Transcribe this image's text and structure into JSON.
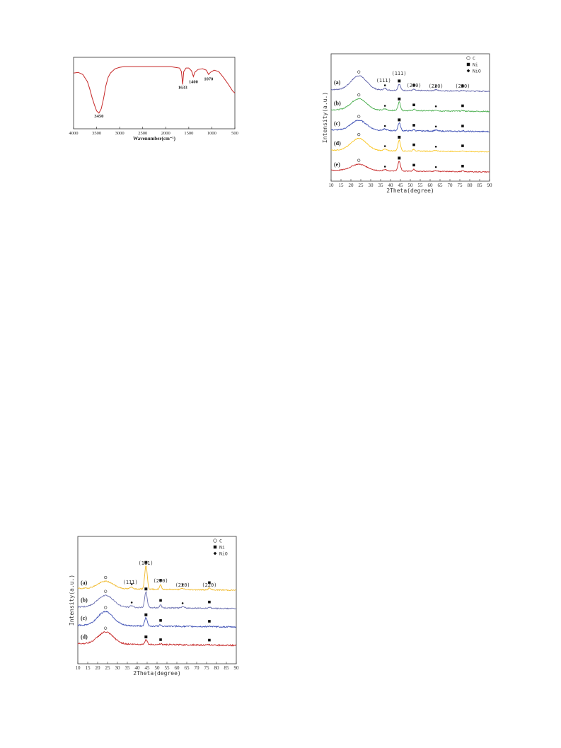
{
  "chart_data": [
    {
      "type": "line",
      "xlabel": "Wavenumber(cm⁻¹)",
      "ylabel": "",
      "xlim": [
        4000,
        500
      ],
      "x_reversed": true,
      "xticks": [
        "4000",
        "3500",
        "3000",
        "2500",
        "2000",
        "1500",
        "1000",
        "500"
      ],
      "grid": false,
      "line_color": "#c62828",
      "series": [
        {
          "x": [
            4000,
            3900,
            3800,
            3700,
            3650,
            3600,
            3550,
            3500,
            3450,
            3400,
            3350,
            3300,
            3250,
            3200,
            3100,
            3000,
            2900,
            2800,
            2600,
            2400,
            2200,
            2000,
            1900,
            1800,
            1700,
            1660,
            1633,
            1610,
            1560,
            1500,
            1440,
            1400,
            1370,
            1300,
            1200,
            1120,
            1070,
            1030,
            950,
            850,
            750,
            650,
            550,
            500
          ],
          "y": [
            0.78,
            0.79,
            0.76,
            0.66,
            0.56,
            0.44,
            0.34,
            0.25,
            0.22,
            0.28,
            0.42,
            0.6,
            0.72,
            0.78,
            0.84,
            0.86,
            0.87,
            0.87,
            0.87,
            0.87,
            0.87,
            0.87,
            0.87,
            0.86,
            0.85,
            0.8,
            0.62,
            0.8,
            0.85,
            0.85,
            0.81,
            0.73,
            0.79,
            0.83,
            0.84,
            0.82,
            0.76,
            0.79,
            0.82,
            0.8,
            0.72,
            0.63,
            0.53,
            0.5
          ]
        }
      ],
      "annotations": [
        {
          "text": "3450",
          "x": 3450,
          "y": 0.16
        },
        {
          "text": "1633",
          "x": 1633,
          "y": 0.56
        },
        {
          "text": "1400",
          "x": 1400,
          "y": 0.64
        },
        {
          "text": "1070",
          "x": 1070,
          "y": 0.68
        }
      ]
    },
    {
      "type": "line",
      "xlabel": "2Theta(degree)",
      "ylabel": "Intensity(a.u.)",
      "xlim": [
        10,
        90
      ],
      "xticks": [
        "10",
        "15",
        "20",
        "25",
        "30",
        "35",
        "40",
        "45",
        "50",
        "55",
        "60",
        "65",
        "70",
        "75",
        "80",
        "85",
        "90"
      ],
      "grid": false,
      "legend": {
        "position": "top-right",
        "entries": [
          {
            "marker": "circle-open",
            "label": "C"
          },
          {
            "marker": "square",
            "label": "Ni"
          },
          {
            "marker": "diamond",
            "label": "NiO"
          }
        ]
      },
      "miller_labels": [
        {
          "text": "(111)",
          "x": 36.5
        },
        {
          "text": "(111)",
          "x": 44.3
        },
        {
          "text": "(200)",
          "x": 51.8
        },
        {
          "text": "(220)",
          "x": 62.9
        },
        {
          "text": "(220)",
          "x": 76.4
        }
      ],
      "series": [
        {
          "name": "(a)",
          "color": "#5c5fa8",
          "c": 1.0,
          "ni": 0.45,
          "nio": 0.12,
          "noise": 0.035
        },
        {
          "name": "(b)",
          "color": "#4caf50",
          "c": 0.8,
          "ni": 0.6,
          "nio": 0.1,
          "noise": 0.035
        },
        {
          "name": "(c)",
          "color": "#3f51b5",
          "c": 0.7,
          "ni": 0.55,
          "nio": 0.1,
          "noise": 0.04
        },
        {
          "name": "(d)",
          "color": "#f9c623",
          "c": 0.85,
          "ni": 0.75,
          "nio": 0.1,
          "noise": 0.03
        },
        {
          "name": "(e)",
          "color": "#c62828",
          "c": 0.45,
          "ni": 0.7,
          "nio": 0.08,
          "noise": 0.03
        }
      ]
    },
    {
      "type": "line",
      "xlabel": "2Theta(degree)",
      "ylabel": "Intensity(a.u.)",
      "xlim": [
        10,
        90
      ],
      "xticks": [
        "10",
        "15",
        "20",
        "25",
        "30",
        "35",
        "40",
        "45",
        "50",
        "55",
        "60",
        "65",
        "70",
        "75",
        "80",
        "85",
        "90"
      ],
      "grid": false,
      "legend": {
        "position": "top-right",
        "entries": [
          {
            "marker": "circle-open",
            "label": "C"
          },
          {
            "marker": "square",
            "label": "Ni"
          },
          {
            "marker": "diamond",
            "label": "NiO"
          }
        ]
      },
      "miller_labels": [
        {
          "text": "(111)",
          "x": 36.5
        },
        {
          "text": "(111)",
          "x": 44.3
        },
        {
          "text": "(200)",
          "x": 51.8
        },
        {
          "text": "(220)",
          "x": 62.9
        },
        {
          "text": "(220)",
          "x": 76.4
        }
      ],
      "series": [
        {
          "name": "(a)",
          "color": "#f0b92a",
          "c": 0.5,
          "ni": 1.6,
          "nio": 0.12,
          "noise": 0.035
        },
        {
          "name": "(b)",
          "color": "#6a6fb0",
          "c": 0.8,
          "ni": 1.05,
          "nio": 0.12,
          "noise": 0.04
        },
        {
          "name": "(c)",
          "color": "#3f51b5",
          "c": 0.95,
          "ni": 0.55,
          "nio": 0.0,
          "noise": 0.045
        },
        {
          "name": "(d)",
          "color": "#c62828",
          "c": 0.8,
          "ni": 0.3,
          "nio": 0.0,
          "noise": 0.045
        }
      ]
    }
  ],
  "legend_symbols": {
    "c": "○",
    "ni": "■",
    "nio": "◆"
  }
}
